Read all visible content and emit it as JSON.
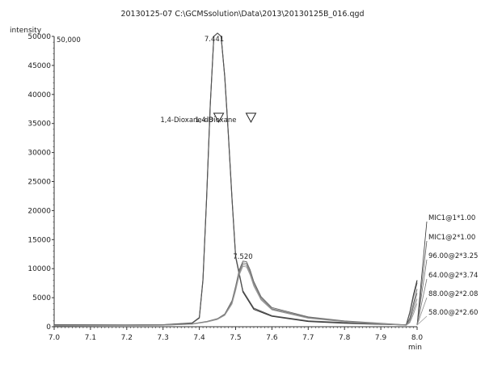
{
  "chart_data": {
    "type": "line",
    "title": "20130125-07 C:\\GCMSsolution\\Data\\2013\\20130125B_016.qgd",
    "ylabel": "intensity",
    "xlabel": "min",
    "xlim": [
      7.0,
      8.0
    ],
    "ylim": [
      0,
      50000
    ],
    "x_ticks": [
      7.0,
      7.1,
      7.2,
      7.3,
      7.4,
      7.5,
      7.6,
      7.7,
      7.8,
      7.9,
      8.0
    ],
    "x_tick_labels": [
      "7.0",
      "7.1",
      "7.2",
      "7.3",
      "7.4",
      "7.5",
      "7.6",
      "7.7",
      "7.8",
      "7.9",
      "8.0"
    ],
    "y_ticks": [
      0,
      5000,
      10000,
      15000,
      20000,
      25000,
      30000,
      35000,
      40000,
      45000,
      50000
    ],
    "y_tick_labels": [
      "0",
      "5000",
      "10000",
      "15000",
      "20000",
      "25000",
      "30000",
      "35000",
      "40000",
      "45000",
      "50000"
    ],
    "scale_label": "50,000",
    "grid": false,
    "legend_position": "right",
    "series": [
      {
        "name": "MIC1@1*1.00",
        "color": "#333333",
        "x": [
          7.0,
          7.2,
          7.3,
          7.38,
          7.4,
          7.41,
          7.42,
          7.43,
          7.44,
          7.45,
          7.46,
          7.47,
          7.48,
          7.49,
          7.5,
          7.52,
          7.55,
          7.6,
          7.7,
          7.8,
          7.9,
          7.97,
          7.98,
          7.99,
          8.0
        ],
        "y": [
          300,
          280,
          330,
          600,
          1500,
          8000,
          22000,
          38000,
          50000,
          52000,
          50000,
          43000,
          33000,
          22000,
          12000,
          6000,
          3000,
          1800,
          900,
          600,
          400,
          300,
          2500,
          5500,
          8000
        ]
      },
      {
        "name": "MIC1@2*1.00",
        "color": "#555555",
        "x": [
          7.0,
          7.2,
          7.3,
          7.38,
          7.4,
          7.41,
          7.42,
          7.43,
          7.44,
          7.45,
          7.46,
          7.47,
          7.48,
          7.49,
          7.5,
          7.52,
          7.55,
          7.6,
          7.7,
          7.8,
          7.9,
          7.97,
          7.98,
          7.99,
          8.0
        ],
        "y": [
          330,
          300,
          350,
          650,
          1600,
          8200,
          22200,
          38200,
          50000,
          52000,
          50000,
          43200,
          33200,
          22200,
          12200,
          6200,
          3200,
          1900,
          1000,
          700,
          450,
          320,
          2400,
          5200,
          7600
        ]
      },
      {
        "name": "96.00@2*3.25",
        "color": "#666666",
        "x": [
          7.0,
          7.2,
          7.3,
          7.38,
          7.42,
          7.45,
          7.47,
          7.49,
          7.5,
          7.51,
          7.52,
          7.53,
          7.54,
          7.55,
          7.57,
          7.6,
          7.7,
          7.8,
          7.9,
          7.97,
          7.98,
          7.99,
          8.0
        ],
        "y": [
          200,
          250,
          300,
          500,
          900,
          1400,
          2200,
          4500,
          7000,
          9800,
          11300,
          11200,
          9800,
          7800,
          5200,
          3300,
          1700,
          1000,
          600,
          300,
          1500,
          4000,
          6500
        ]
      },
      {
        "name": "64.00@2*3.74",
        "color": "#777777",
        "x": [
          7.0,
          7.2,
          7.3,
          7.38,
          7.42,
          7.45,
          7.47,
          7.49,
          7.5,
          7.51,
          7.52,
          7.53,
          7.54,
          7.55,
          7.57,
          7.6,
          7.7,
          7.8,
          7.9,
          7.97,
          7.98,
          7.99,
          8.0
        ],
        "y": [
          180,
          230,
          280,
          480,
          850,
          1350,
          2100,
          4300,
          6800,
          9500,
          11000,
          10900,
          9500,
          7600,
          5000,
          3100,
          1600,
          950,
          550,
          280,
          1200,
          3500,
          5800
        ]
      },
      {
        "name": "88.00@2*2.08",
        "color": "#888888",
        "x": [
          7.0,
          7.2,
          7.3,
          7.38,
          7.42,
          7.45,
          7.47,
          7.49,
          7.5,
          7.51,
          7.52,
          7.53,
          7.54,
          7.55,
          7.57,
          7.6,
          7.7,
          7.8,
          7.9,
          7.97,
          7.98,
          7.99,
          8.0
        ],
        "y": [
          160,
          210,
          260,
          450,
          820,
          1300,
          2000,
          4100,
          6500,
          9200,
          10700,
          10600,
          9200,
          7300,
          4800,
          3000,
          1500,
          900,
          500,
          250,
          900,
          2800,
          4800
        ]
      },
      {
        "name": "58.00@2*2.60",
        "color": "#999999",
        "x": [
          7.0,
          7.2,
          7.3,
          7.38,
          7.42,
          7.45,
          7.47,
          7.49,
          7.5,
          7.51,
          7.52,
          7.53,
          7.54,
          7.55,
          7.57,
          7.6,
          7.7,
          7.8,
          7.9,
          7.97,
          7.98,
          7.99,
          8.0
        ],
        "y": [
          150,
          200,
          250,
          430,
          800,
          1250,
          1950,
          3900,
          6200,
          8900,
          10400,
          10300,
          8900,
          7000,
          4600,
          2900,
          1450,
          850,
          480,
          240,
          700,
          2200,
          4000
        ]
      }
    ],
    "annotations": [
      {
        "text": "7.441",
        "x": 7.441,
        "y": 50000
      },
      {
        "text": "7.520",
        "x": 7.52,
        "y": 11300
      },
      {
        "text": "1,4-Dioxane-d8",
        "x": 7.44,
        "y": 35800,
        "marker": "triangle-down"
      },
      {
        "text": "1,4-Dioxane",
        "x": 7.52,
        "y": 35800,
        "marker": "triangle-down"
      }
    ]
  }
}
